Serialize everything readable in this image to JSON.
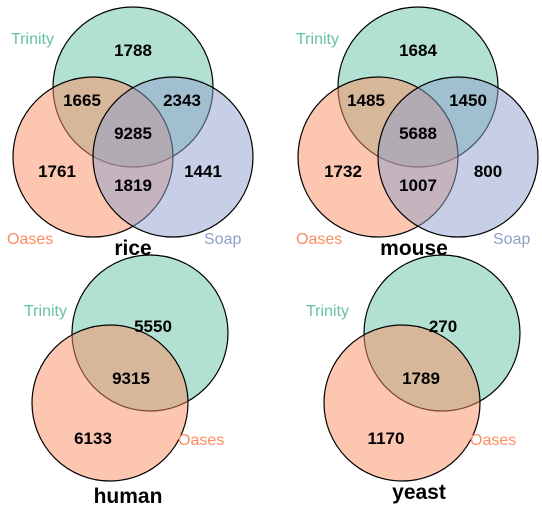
{
  "colors": {
    "Trinity": "#66c2a5",
    "Oases": "#fc8d62",
    "Soap": "#8da0cb"
  },
  "panels": [
    {
      "title": "rice",
      "sets": [
        "Trinity",
        "Oases",
        "Soap"
      ],
      "regions": {
        "Trinity_only": "1788",
        "Oases_only": "1761",
        "Soap_only": "1441",
        "Trinity_Oases": "1665",
        "Trinity_Soap": "2343",
        "Oases_Soap": "1819",
        "all": "9285"
      }
    },
    {
      "title": "mouse",
      "sets": [
        "Trinity",
        "Oases",
        "Soap"
      ],
      "regions": {
        "Trinity_only": "1684",
        "Oases_only": "1732",
        "Soap_only": "800",
        "Trinity_Oases": "1485",
        "Trinity_Soap": "1450",
        "Oases_Soap": "1007",
        "all": "5688"
      }
    },
    {
      "title": "human",
      "sets": [
        "Trinity",
        "Oases"
      ],
      "regions": {
        "Trinity_only": "5550",
        "Oases_only": "6133",
        "Trinity_Oases": "9315"
      }
    },
    {
      "title": "yeast",
      "sets": [
        "Trinity",
        "Oases"
      ],
      "regions": {
        "Trinity_only": "270",
        "Oases_only": "1170",
        "Trinity_Oases": "1789"
      }
    }
  ]
}
